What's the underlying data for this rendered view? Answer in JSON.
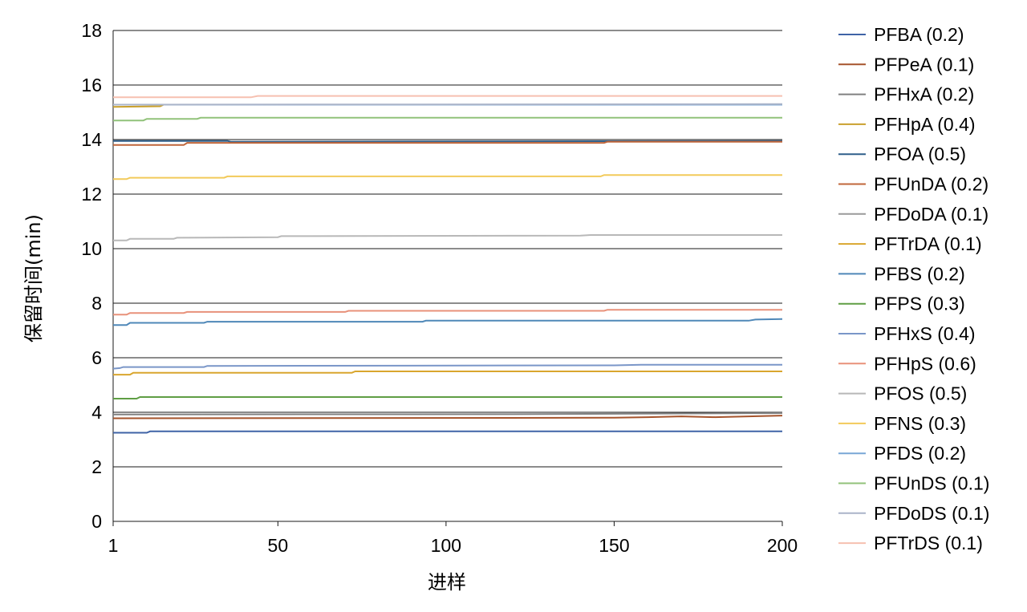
{
  "chart_data": {
    "type": "line",
    "title": "",
    "xlabel": "进样",
    "ylabel": "保留时间(min)",
    "xlim": [
      1,
      200
    ],
    "ylim": [
      0,
      18
    ],
    "x_ticks": [
      1,
      50,
      100,
      150,
      200
    ],
    "y_ticks": [
      0,
      2,
      4,
      6,
      8,
      10,
      12,
      14,
      16,
      18
    ],
    "grid": true,
    "legend_position": "right",
    "series": [
      {
        "name": "PFBA (0.2)",
        "color": "#3f63a6",
        "points": [
          [
            1,
            3.25
          ],
          [
            11,
            3.25
          ],
          [
            12,
            3.3
          ],
          [
            200,
            3.3
          ]
        ]
      },
      {
        "name": "PFPeA (0.1)",
        "color": "#a5532b",
        "points": [
          [
            1,
            3.78
          ],
          [
            150,
            3.8
          ],
          [
            160,
            3.82
          ],
          [
            170,
            3.85
          ],
          [
            180,
            3.82
          ],
          [
            190,
            3.85
          ],
          [
            200,
            3.88
          ]
        ]
      },
      {
        "name": "PFHxA (0.2)",
        "color": "#808080",
        "points": [
          [
            1,
            3.92
          ],
          [
            120,
            3.93
          ],
          [
            200,
            3.97
          ]
        ]
      },
      {
        "name": "PFHpA (0.4)",
        "color": "#c9a02d",
        "points": [
          [
            1,
            15.2
          ],
          [
            15,
            15.22
          ],
          [
            16,
            15.28
          ],
          [
            200,
            15.28
          ]
        ]
      },
      {
        "name": "PFOA (0.5)",
        "color": "#2f5f8a",
        "points": [
          [
            1,
            13.95
          ],
          [
            35,
            13.95
          ],
          [
            36,
            13.92
          ],
          [
            200,
            13.95
          ]
        ]
      },
      {
        "name": "PFUnDA (0.2)",
        "color": "#c0663a",
        "points": [
          [
            1,
            13.8
          ],
          [
            22,
            13.8
          ],
          [
            23,
            13.88
          ],
          [
            147,
            13.88
          ],
          [
            148,
            13.92
          ],
          [
            200,
            13.92
          ]
        ]
      },
      {
        "name": "PFDoDA (0.1)",
        "color": "#9a9a9a",
        "points": [
          [
            1,
            15.28
          ],
          [
            200,
            15.28
          ]
        ]
      },
      {
        "name": "PFTrDA (0.1)",
        "color": "#d9a62e",
        "points": [
          [
            1,
            5.38
          ],
          [
            6,
            5.38
          ],
          [
            7,
            5.45
          ],
          [
            72,
            5.45
          ],
          [
            73,
            5.5
          ],
          [
            200,
            5.5
          ]
        ]
      },
      {
        "name": "PFBS (0.2)",
        "color": "#4f88b8",
        "points": [
          [
            1,
            7.2
          ],
          [
            5,
            7.2
          ],
          [
            6,
            7.28
          ],
          [
            28,
            7.28
          ],
          [
            29,
            7.32
          ],
          [
            93,
            7.32
          ],
          [
            94,
            7.36
          ],
          [
            190,
            7.36
          ],
          [
            192,
            7.4
          ],
          [
            200,
            7.42
          ]
        ]
      },
      {
        "name": "PFPS (0.3)",
        "color": "#5f9e44",
        "points": [
          [
            1,
            4.5
          ],
          [
            8,
            4.5
          ],
          [
            9,
            4.56
          ],
          [
            200,
            4.56
          ]
        ]
      },
      {
        "name": "PFHxS (0.4)",
        "color": "#7a96c8",
        "points": [
          [
            1,
            5.6
          ],
          [
            3,
            5.62
          ],
          [
            4,
            5.66
          ],
          [
            28,
            5.66
          ],
          [
            29,
            5.7
          ],
          [
            150,
            5.72
          ],
          [
            158,
            5.74
          ],
          [
            200,
            5.74
          ]
        ]
      },
      {
        "name": "PFHpS (0.6)",
        "color": "#e8917a",
        "points": [
          [
            1,
            7.58
          ],
          [
            5,
            7.58
          ],
          [
            6,
            7.64
          ],
          [
            22,
            7.64
          ],
          [
            23,
            7.68
          ],
          [
            70,
            7.68
          ],
          [
            71,
            7.72
          ],
          [
            147,
            7.72
          ],
          [
            148,
            7.76
          ],
          [
            200,
            7.76
          ]
        ]
      },
      {
        "name": "PFOS (0.5)",
        "color": "#b8b8b8",
        "points": [
          [
            1,
            10.3
          ],
          [
            5,
            10.3
          ],
          [
            6,
            10.36
          ],
          [
            19,
            10.36
          ],
          [
            20,
            10.4
          ],
          [
            50,
            10.42
          ],
          [
            51,
            10.46
          ],
          [
            140,
            10.48
          ],
          [
            143,
            10.5
          ],
          [
            200,
            10.5
          ]
        ]
      },
      {
        "name": "PFNS (0.3)",
        "color": "#f2ca5a",
        "points": [
          [
            1,
            12.55
          ],
          [
            5,
            12.55
          ],
          [
            6,
            12.6
          ],
          [
            34,
            12.6
          ],
          [
            35,
            12.65
          ],
          [
            146,
            12.65
          ],
          [
            147,
            12.7
          ],
          [
            200,
            12.7
          ]
        ]
      },
      {
        "name": "PFDS (0.2)",
        "color": "#79a7d6",
        "points": [
          [
            1,
            15.28
          ],
          [
            200,
            15.28
          ]
        ]
      },
      {
        "name": "PFUnDS (0.1)",
        "color": "#91c27a",
        "points": [
          [
            1,
            14.7
          ],
          [
            10,
            14.7
          ],
          [
            11,
            14.76
          ],
          [
            26,
            14.76
          ],
          [
            27,
            14.8
          ],
          [
            200,
            14.8
          ]
        ]
      },
      {
        "name": "PFDoDS (0.1)",
        "color": "#aab4c9",
        "points": [
          [
            1,
            15.28
          ],
          [
            200,
            15.3
          ]
        ]
      },
      {
        "name": "PFTrDS (0.1)",
        "color": "#f6c0b0",
        "points": [
          [
            1,
            15.55
          ],
          [
            42,
            15.55
          ],
          [
            44,
            15.6
          ],
          [
            200,
            15.6
          ]
        ]
      }
    ]
  }
}
